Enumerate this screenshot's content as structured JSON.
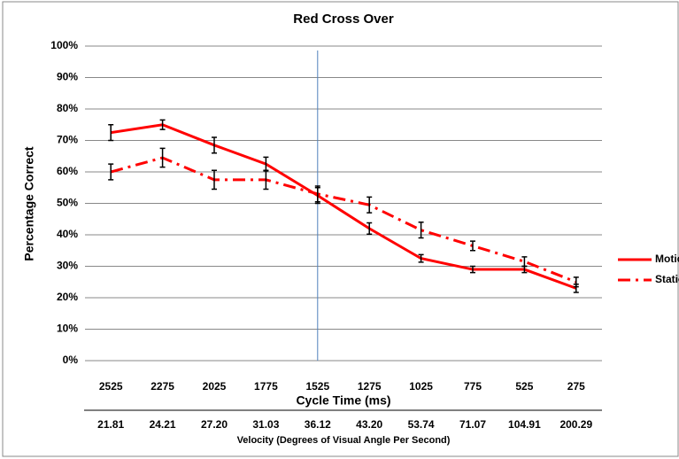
{
  "chart_data": {
    "type": "line",
    "title": "Red Cross Over",
    "y_label": "Percentage Correct",
    "x_label": "Cycle Time (ms)",
    "x2_label": "Velocity (Degrees of Visual Angle Per Second)",
    "categories": [
      "2525",
      "2275",
      "2025",
      "1775",
      "1525",
      "1275",
      "1025",
      "775",
      "525",
      "275"
    ],
    "categories2": [
      "21.81",
      "24.21",
      "27.20",
      "31.03",
      "36.12",
      "43.20",
      "53.74",
      "71.07",
      "104.91",
      "200.29"
    ],
    "series": [
      {
        "name": "Motion",
        "color": "#ff0000",
        "dash": "solid",
        "values": [
          72.5,
          75,
          68.5,
          62.5,
          52.5,
          42,
          32.5,
          29,
          29,
          23
        ],
        "errors": [
          2.5,
          1.5,
          2.5,
          2.2,
          2.5,
          1.8,
          1.2,
          1,
          1,
          1.3
        ]
      },
      {
        "name": "Static",
        "color": "#ff0000",
        "dash": "dashdot",
        "values": [
          60,
          64.5,
          57.5,
          57.5,
          53,
          49.5,
          41.5,
          36.5,
          31.5,
          25
        ],
        "errors": [
          2.5,
          3,
          3,
          3,
          2.5,
          2.5,
          2.5,
          1.5,
          1.5,
          1.5
        ]
      }
    ],
    "ylim": [
      0,
      100
    ],
    "yticks": [
      {
        "value": 0,
        "label": "0%"
      },
      {
        "value": 10,
        "label": "10%"
      },
      {
        "value": 20,
        "label": "20%"
      },
      {
        "value": 30,
        "label": "30%"
      },
      {
        "value": 40,
        "label": "40%"
      },
      {
        "value": 50,
        "label": "50%"
      },
      {
        "value": 60,
        "label": "60%"
      },
      {
        "value": 70,
        "label": "70%"
      },
      {
        "value": 80,
        "label": "80%"
      },
      {
        "value": 90,
        "label": "90%"
      },
      {
        "value": 100,
        "label": "100%"
      }
    ],
    "grid": true,
    "legend": "right"
  }
}
